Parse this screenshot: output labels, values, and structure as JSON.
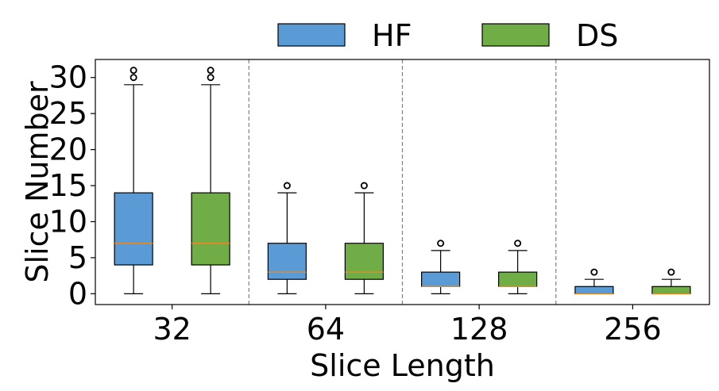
{
  "chart_data": {
    "type": "boxplot",
    "xlabel": "Slice Length",
    "ylabel": "Slice Number",
    "categories": [
      "32",
      "64",
      "128",
      "256"
    ],
    "ylim": [
      -1.5,
      32.5
    ],
    "yticks": [
      0,
      5,
      10,
      15,
      20,
      25,
      30
    ],
    "grid": false,
    "legend_position": "top-center",
    "separators": "dashed vertical lines between groups",
    "median_color": "#e08a2c",
    "series": [
      {
        "name": "HF",
        "color": "#5b9bd5",
        "boxes": [
          {
            "whisker_low": 0,
            "q1": 4,
            "median": 7,
            "q3": 14,
            "whisker_high": 29,
            "outliers": [
              30,
              31
            ]
          },
          {
            "whisker_low": 0,
            "q1": 2,
            "median": 3,
            "q3": 7,
            "whisker_high": 14,
            "outliers": [
              15
            ]
          },
          {
            "whisker_low": 0,
            "q1": 1,
            "median": 1,
            "q3": 3,
            "whisker_high": 6,
            "outliers": [
              7
            ]
          },
          {
            "whisker_low": 0,
            "q1": 0,
            "median": 0,
            "q3": 1,
            "whisker_high": 2,
            "outliers": [
              3
            ]
          }
        ]
      },
      {
        "name": "DS",
        "color": "#70ad47",
        "boxes": [
          {
            "whisker_low": 0,
            "q1": 4,
            "median": 7,
            "q3": 14,
            "whisker_high": 29,
            "outliers": [
              30,
              31
            ]
          },
          {
            "whisker_low": 0,
            "q1": 2,
            "median": 3,
            "q3": 7,
            "whisker_high": 14,
            "outliers": [
              15
            ]
          },
          {
            "whisker_low": 0,
            "q1": 1,
            "median": 1,
            "q3": 3,
            "whisker_high": 6,
            "outliers": [
              7
            ]
          },
          {
            "whisker_low": 0,
            "q1": 0,
            "median": 0,
            "q3": 1,
            "whisker_high": 2,
            "outliers": [
              3
            ]
          }
        ]
      }
    ]
  }
}
